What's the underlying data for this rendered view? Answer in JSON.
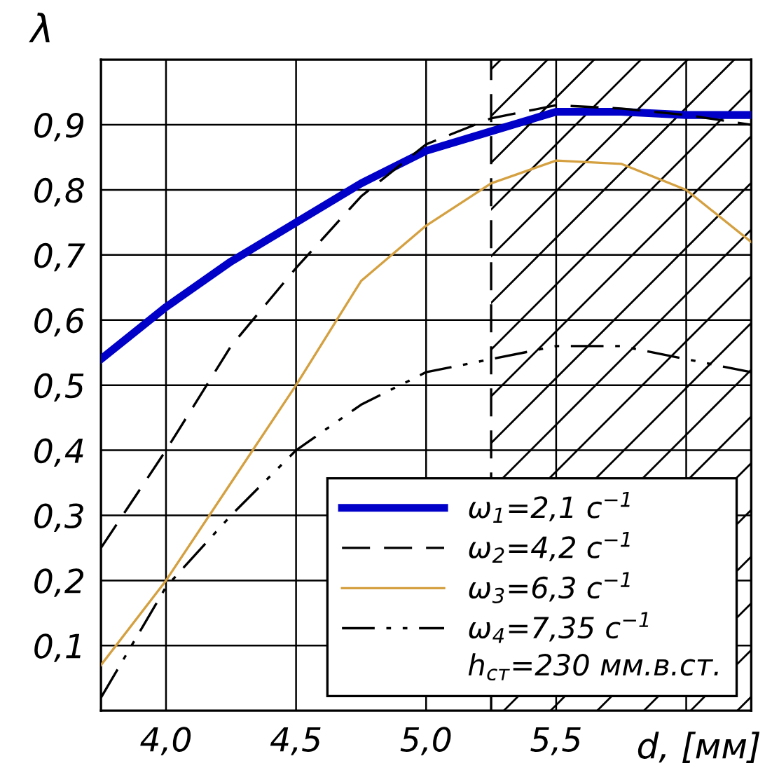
{
  "chart_data": {
    "type": "line",
    "xlabel": "d, [мм]",
    "ylabel": "λ",
    "x": [
      3.75,
      4.0,
      4.25,
      4.5,
      4.75,
      5.0,
      5.25,
      5.5,
      5.75,
      6.0,
      6.25
    ],
    "series": [
      {
        "name": "ω$_{1}$=2,1 с$^{−1}$",
        "color": "#0000c8",
        "line_style": "solid",
        "values": [
          0.54,
          0.62,
          0.69,
          0.75,
          0.81,
          0.86,
          0.89,
          0.92,
          0.92,
          0.915,
          0.915
        ]
      },
      {
        "name": "ω$_{2}$=4,2 с$^{−1}$",
        "color": "#000000",
        "line_style": "dashed",
        "values": [
          0.25,
          0.4,
          0.56,
          0.68,
          0.79,
          0.87,
          0.91,
          0.93,
          0.925,
          0.915,
          0.9
        ]
      },
      {
        "name": "ω$_{3}$=6,3 с$^{−1}$",
        "color": "#d4a040",
        "line_style": "solid",
        "values": [
          0.07,
          0.2,
          0.35,
          0.5,
          0.66,
          0.745,
          0.81,
          0.845,
          0.84,
          0.8,
          0.72
        ]
      },
      {
        "name": "ω$_{4}$=7,35 с$^{−1}$",
        "color": "#000000",
        "line_style": "dashdot",
        "values": [
          0.02,
          0.19,
          0.3,
          0.4,
          0.47,
          0.52,
          0.54,
          0.56,
          0.56,
          0.54,
          0.52
        ]
      }
    ],
    "xlim": [
      3.75,
      6.25
    ],
    "ylim": [
      0,
      1.0
    ],
    "xticks": [
      {
        "value": 4.0,
        "label": "4,0"
      },
      {
        "value": 4.5,
        "label": "4,5"
      },
      {
        "value": 5.0,
        "label": "5,0"
      },
      {
        "value": 5.5,
        "label": "5,5"
      },
      {
        "value": 6.0,
        "label": null
      }
    ],
    "yticks": [
      {
        "value": 0.1,
        "label": "0,1"
      },
      {
        "value": 0.2,
        "label": "0,2"
      },
      {
        "value": 0.3,
        "label": "0,3"
      },
      {
        "value": 0.4,
        "label": "0,4"
      },
      {
        "value": 0.5,
        "label": "0,5"
      },
      {
        "value": 0.6,
        "label": "0,6"
      },
      {
        "value": 0.7,
        "label": "0,7"
      },
      {
        "value": 0.8,
        "label": "0,8"
      },
      {
        "value": 0.9,
        "label": "0,9"
      }
    ],
    "bands": [
      {
        "axis": "x",
        "from": 5.25,
        "to": 6.25
      }
    ],
    "ref_lines": [
      {
        "axis": "x",
        "value": 5.25,
        "color": "#000000",
        "line_style": "dashed"
      }
    ],
    "annotations": [
      "h$_{ст}$=230 мм.в.ст."
    ],
    "grid": true,
    "legend": "bottom right",
    "marker": "none"
  }
}
